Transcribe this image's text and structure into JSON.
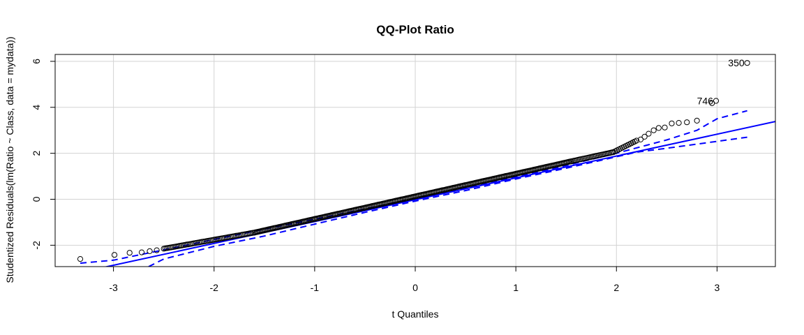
{
  "chart_data": {
    "type": "scatter",
    "title": "QQ-Plot Ratio",
    "xlabel": "t Quantiles",
    "ylabel": "Studentized Residuals(lm(Ratio ~ Class, data = mydata))",
    "xlim": [
      -3.58,
      3.58
    ],
    "ylim": [
      -2.93,
      6.3
    ],
    "xticks": [
      -3,
      -2,
      -1,
      0,
      1,
      2,
      3
    ],
    "yticks": [
      -2,
      0,
      2,
      4,
      6
    ],
    "grid": true,
    "line_color": "#0000ff",
    "reference_line": {
      "intercept": -0.02,
      "slope": 0.95
    },
    "envelope": {
      "upper": {
        "x": [
          -3.33,
          -3.0,
          -2.5,
          -2.0,
          -1.5,
          -1.0,
          -0.5,
          0.0,
          0.5,
          1.0,
          1.5,
          2.0,
          2.3,
          2.5,
          2.8,
          3.0,
          3.3
        ],
        "y": [
          -2.78,
          -2.65,
          -2.2,
          -1.75,
          -1.3,
          -0.87,
          -0.42,
          0.04,
          0.5,
          0.97,
          1.47,
          2.0,
          2.35,
          2.58,
          3.0,
          3.5,
          3.85
        ]
      },
      "lower": {
        "x": [
          -2.65,
          -2.5,
          -2.0,
          -1.5,
          -1.0,
          -0.5,
          0.0,
          0.5,
          1.0,
          1.5,
          2.0,
          2.2,
          2.5,
          2.8,
          3.3
        ],
        "y": [
          -2.93,
          -2.6,
          -2.05,
          -1.6,
          -1.08,
          -0.57,
          -0.08,
          0.38,
          0.88,
          1.35,
          1.85,
          2.05,
          2.22,
          2.4,
          2.7
        ]
      }
    },
    "points_dense": [
      {
        "x_from": -2.5,
        "x_to": -1.6,
        "y_from": -2.15,
        "y_to": -1.45,
        "n": 60
      },
      {
        "x_from": -1.6,
        "x_to": 1.55,
        "y_from": -1.45,
        "y_to": 1.65,
        "n": 260
      },
      {
        "x_from": 1.55,
        "x_to": 1.97,
        "y_from": 1.65,
        "y_to": 2.05,
        "n": 30
      },
      {
        "x_from": 1.97,
        "x_to": 2.2,
        "y_from": 2.05,
        "y_to": 2.55,
        "n": 14
      }
    ],
    "points_tail": [
      {
        "x": -3.33,
        "y": -2.6
      },
      {
        "x": -2.99,
        "y": -2.42
      },
      {
        "x": -2.84,
        "y": -2.33
      },
      {
        "x": -2.72,
        "y": -2.31
      },
      {
        "x": -2.64,
        "y": -2.26
      },
      {
        "x": -2.57,
        "y": -2.22
      },
      {
        "x": 2.24,
        "y": 2.6
      },
      {
        "x": 2.28,
        "y": 2.72
      },
      {
        "x": 2.32,
        "y": 2.85
      },
      {
        "x": 2.37,
        "y": 3.0
      },
      {
        "x": 2.42,
        "y": 3.1
      },
      {
        "x": 2.48,
        "y": 3.12
      },
      {
        "x": 2.55,
        "y": 3.3
      },
      {
        "x": 2.62,
        "y": 3.32
      },
      {
        "x": 2.7,
        "y": 3.35
      },
      {
        "x": 2.8,
        "y": 3.42
      }
    ],
    "labeled_points": [
      {
        "x": 2.99,
        "y": 4.28,
        "label": "746"
      },
      {
        "x": 2.95,
        "y": 4.18,
        "label": ""
      },
      {
        "x": 3.3,
        "y": 5.93,
        "label": "350"
      }
    ]
  }
}
